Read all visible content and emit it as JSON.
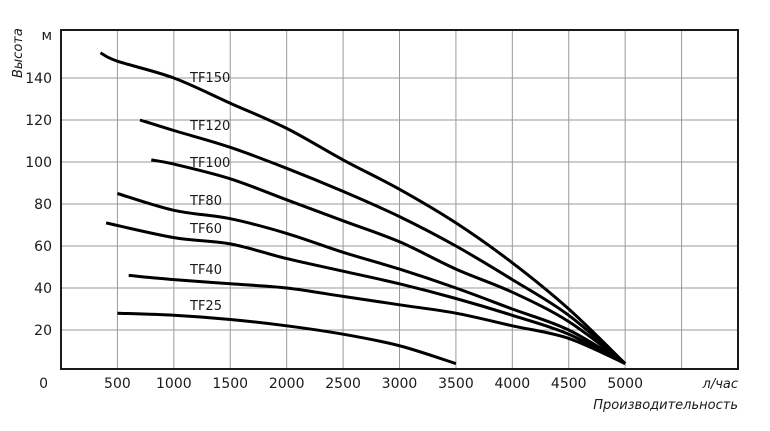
{
  "chart_data": {
    "type": "line",
    "title": "",
    "xlabel": "Производительность",
    "xunit": "л/час",
    "ylabel": "Высота",
    "yunit": "м",
    "xlim": [
      0,
      6000
    ],
    "ylim": [
      0,
      163
    ],
    "grid": true,
    "x_ticks": [
      500,
      1000,
      1500,
      2000,
      2500,
      3000,
      3500,
      4000,
      4500,
      5000
    ],
    "y_ticks": [
      20,
      40,
      60,
      80,
      100,
      120,
      140
    ],
    "origin_label": "0",
    "series": [
      {
        "name": "TF150",
        "x": [
          350,
          500,
          1000,
          1500,
          2000,
          2500,
          3000,
          3500,
          4000,
          4500,
          5000
        ],
        "y": [
          152,
          148,
          140,
          128,
          116,
          101,
          87,
          71,
          52,
          30,
          4
        ]
      },
      {
        "name": "TF120",
        "x": [
          700,
          1000,
          1500,
          2000,
          2500,
          3000,
          3500,
          4000,
          4500,
          5000
        ],
        "y": [
          120,
          115,
          107,
          97,
          86,
          74,
          60,
          44,
          27,
          4
        ]
      },
      {
        "name": "TF100",
        "x": [
          800,
          1000,
          1500,
          2000,
          2500,
          3000,
          3500,
          4000,
          4500,
          5000
        ],
        "y": [
          101,
          99,
          92,
          82,
          72,
          62,
          49,
          38,
          24,
          4
        ]
      },
      {
        "name": "TF80",
        "x": [
          500,
          1000,
          1500,
          2000,
          2500,
          3000,
          3500,
          4000,
          4500,
          5000
        ],
        "y": [
          85,
          77,
          73,
          66,
          57,
          49,
          40,
          30,
          20,
          4
        ]
      },
      {
        "name": "TF60",
        "x": [
          400,
          1000,
          1500,
          2000,
          2500,
          3000,
          3500,
          4000,
          4500,
          5000
        ],
        "y": [
          71,
          64,
          61,
          54,
          48,
          42,
          35,
          27,
          18,
          4
        ]
      },
      {
        "name": "TF40",
        "x": [
          600,
          1000,
          1500,
          2000,
          2500,
          3000,
          3500,
          4000,
          4500,
          5000
        ],
        "y": [
          46,
          44,
          42,
          40,
          36,
          32,
          28,
          22,
          16,
          4
        ]
      },
      {
        "name": "TF25",
        "x": [
          500,
          1000,
          1500,
          2000,
          2500,
          3000,
          3500
        ],
        "y": [
          28,
          27,
          25,
          22,
          18,
          12.5,
          4
        ]
      }
    ],
    "colors": {
      "line": "#000000",
      "grid": "#9a9a9a",
      "frame": "#1a1a1a"
    }
  }
}
